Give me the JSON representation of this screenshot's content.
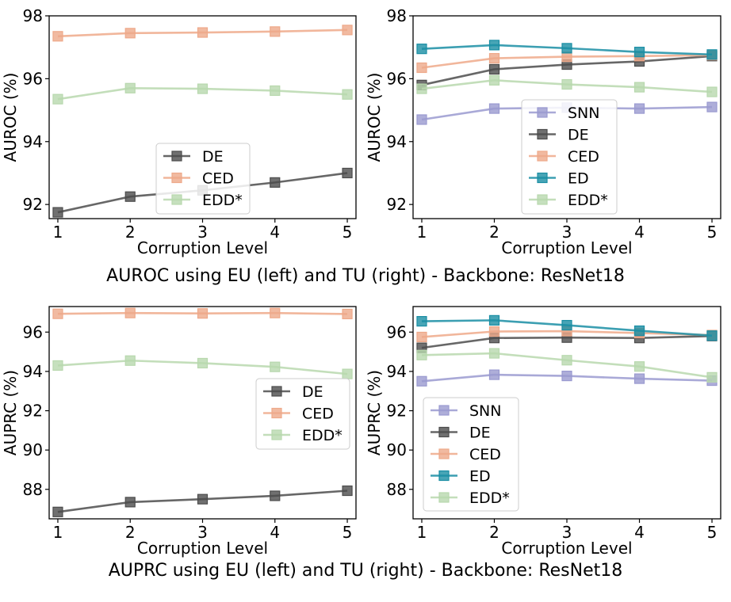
{
  "captions": {
    "top": "AUROC using EU (left) and TU (right) - Backbone: ResNet18",
    "bottom": "AUPRC using EU (left) and TU (right) - Backbone: ResNet18"
  },
  "colors": {
    "SNN": "#9a9ad0",
    "DE": "#4c4c4c",
    "CED": "#eea98a",
    "ED": "#1a8ea4",
    "EDD*": "#b8d8ae"
  },
  "chart_data": [
    {
      "id": "auroc-eu",
      "type": "line",
      "title": "",
      "xlabel": "Corruption Level",
      "ylabel": "AUROC (%)",
      "x": [
        1,
        2,
        3,
        4,
        5
      ],
      "xticks": [
        "1",
        "2",
        "3",
        "4",
        "5"
      ],
      "ylim": [
        91.55,
        98.0
      ],
      "yticks": [
        92,
        94,
        96,
        98
      ],
      "ytick_labels": [
        "92",
        "94",
        "96",
        "98"
      ],
      "legend_position": "lower-center",
      "series": [
        {
          "name": "DE",
          "values": [
            91.75,
            92.25,
            92.45,
            92.7,
            93.0
          ]
        },
        {
          "name": "CED",
          "values": [
            97.35,
            97.45,
            97.47,
            97.5,
            97.55
          ]
        },
        {
          "name": "EDD*",
          "values": [
            95.35,
            95.7,
            95.68,
            95.62,
            95.5
          ]
        }
      ]
    },
    {
      "id": "auroc-tu",
      "type": "line",
      "title": "",
      "xlabel": "Corruption Level",
      "ylabel": "AUROC (%)",
      "x": [
        1,
        2,
        3,
        4,
        5
      ],
      "xticks": [
        "1",
        "2",
        "3",
        "4",
        "5"
      ],
      "ylim": [
        91.55,
        98.0
      ],
      "yticks": [
        92,
        94,
        96,
        98
      ],
      "ytick_labels": [
        "92",
        "94",
        "96",
        "98"
      ],
      "legend_position": "lower-center",
      "series": [
        {
          "name": "SNN",
          "values": [
            94.7,
            95.05,
            95.08,
            95.05,
            95.1
          ]
        },
        {
          "name": "DE",
          "values": [
            95.8,
            96.3,
            96.45,
            96.55,
            96.72
          ]
        },
        {
          "name": "CED",
          "values": [
            96.35,
            96.65,
            96.7,
            96.72,
            96.75
          ]
        },
        {
          "name": "ED",
          "values": [
            96.95,
            97.07,
            96.97,
            96.85,
            96.77
          ]
        },
        {
          "name": "EDD*",
          "values": [
            95.68,
            95.95,
            95.82,
            95.73,
            95.58
          ]
        }
      ]
    },
    {
      "id": "auprc-eu",
      "type": "line",
      "title": "",
      "xlabel": "Corruption Level",
      "ylabel": "AUPRC (%)",
      "x": [
        1,
        2,
        3,
        4,
        5
      ],
      "xticks": [
        "1",
        "2",
        "3",
        "4",
        "5"
      ],
      "ylim": [
        86.5,
        97.3
      ],
      "yticks": [
        88,
        90,
        92,
        94,
        96
      ],
      "ytick_labels": [
        "88",
        "90",
        "92",
        "94",
        "96"
      ],
      "legend_position": "center-right",
      "series": [
        {
          "name": "DE",
          "values": [
            86.85,
            87.35,
            87.5,
            87.67,
            87.93
          ]
        },
        {
          "name": "CED",
          "values": [
            96.93,
            96.97,
            96.95,
            96.97,
            96.92
          ]
        },
        {
          "name": "EDD*",
          "values": [
            94.3,
            94.55,
            94.42,
            94.23,
            93.87
          ]
        }
      ]
    },
    {
      "id": "auprc-tu",
      "type": "line",
      "title": "",
      "xlabel": "Corruption Level",
      "ylabel": "AUPRC (%)",
      "x": [
        1,
        2,
        3,
        4,
        5
      ],
      "xticks": [
        "1",
        "2",
        "3",
        "4",
        "5"
      ],
      "ylim": [
        86.5,
        97.3
      ],
      "yticks": [
        88,
        90,
        92,
        94,
        96
      ],
      "ytick_labels": [
        "88",
        "90",
        "92",
        "94",
        "96"
      ],
      "legend_position": "lower-left",
      "series": [
        {
          "name": "SNN",
          "values": [
            93.5,
            93.83,
            93.77,
            93.63,
            93.53
          ]
        },
        {
          "name": "DE",
          "values": [
            95.2,
            95.7,
            95.72,
            95.7,
            95.8
          ]
        },
        {
          "name": "CED",
          "values": [
            95.75,
            96.03,
            96.05,
            95.95,
            95.85
          ]
        },
        {
          "name": "ED",
          "values": [
            96.55,
            96.6,
            96.35,
            96.07,
            95.82
          ]
        },
        {
          "name": "EDD*",
          "values": [
            94.83,
            94.92,
            94.57,
            94.25,
            93.7
          ]
        }
      ]
    }
  ]
}
